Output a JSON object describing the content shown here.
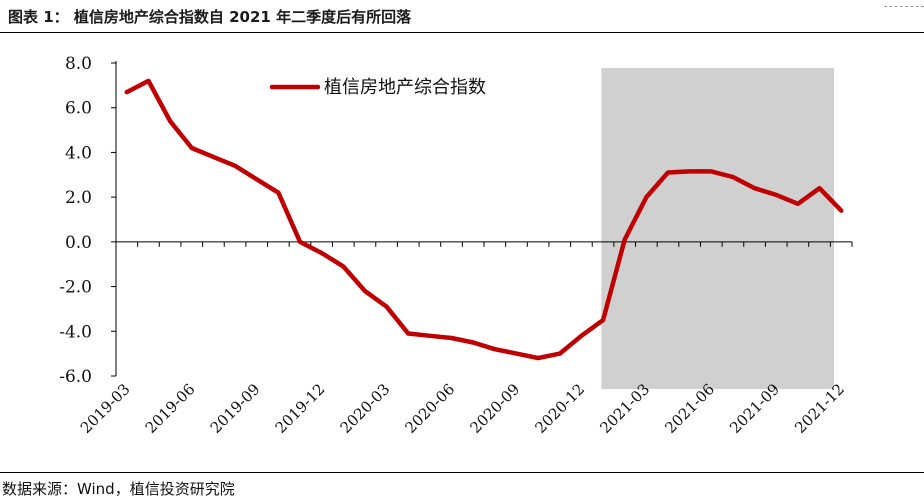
{
  "figure": {
    "title": "图表 1：  植信房地产综合指数自 2021 年二季度后有所回落",
    "source": "数据来源：Wind，植信投资研究院"
  },
  "colors": {
    "series": "#c00000",
    "highlight_band": "#d0d0d0",
    "axis": "#000000"
  },
  "chart_data": {
    "type": "line",
    "title": "",
    "xlabel": "",
    "ylabel": "",
    "ylim": [
      -6.0,
      8.0
    ],
    "yticks": [
      "8.0",
      "6.0",
      "4.0",
      "2.0",
      "0.0",
      "-2.0",
      "-4.0",
      "-6.0"
    ],
    "x": [
      "2019-03",
      "2019-04",
      "2019-05",
      "2019-06",
      "2019-07",
      "2019-08",
      "2019-09",
      "2019-10",
      "2019-11",
      "2019-12",
      "2020-01",
      "2020-02",
      "2020-03",
      "2020-04",
      "2020-05",
      "2020-06",
      "2020-07",
      "2020-08",
      "2020-09",
      "2020-10",
      "2020-11",
      "2020-12",
      "2021-01",
      "2021-02",
      "2021-03",
      "2021-04",
      "2021-05",
      "2021-06",
      "2021-07",
      "2021-08",
      "2021-09",
      "2021-10",
      "2021-11",
      "2021-12"
    ],
    "xtick_labels": [
      "2019-03",
      "2019-06",
      "2019-09",
      "2019-12",
      "2020-03",
      "2020-06",
      "2020-09",
      "2020-12",
      "2021-03",
      "2021-06",
      "2021-09",
      "2021-12"
    ],
    "series": [
      {
        "name": "植信房地产综合指数",
        "values": [
          6.7,
          7.2,
          5.4,
          4.2,
          3.8,
          3.4,
          2.8,
          2.2,
          0.0,
          -0.5,
          -1.1,
          -2.2,
          -2.9,
          -4.1,
          -4.2,
          -4.3,
          -4.5,
          -4.8,
          -5.0,
          -5.2,
          -5.0,
          -4.2,
          -3.5,
          0.1,
          2.0,
          3.1,
          3.15,
          3.15,
          2.9,
          2.4,
          2.1,
          1.7,
          2.4,
          1.4
        ]
      }
    ],
    "highlight_range": [
      "2021-01",
      "2021-12"
    ],
    "grid": false,
    "legend": "top-left"
  }
}
